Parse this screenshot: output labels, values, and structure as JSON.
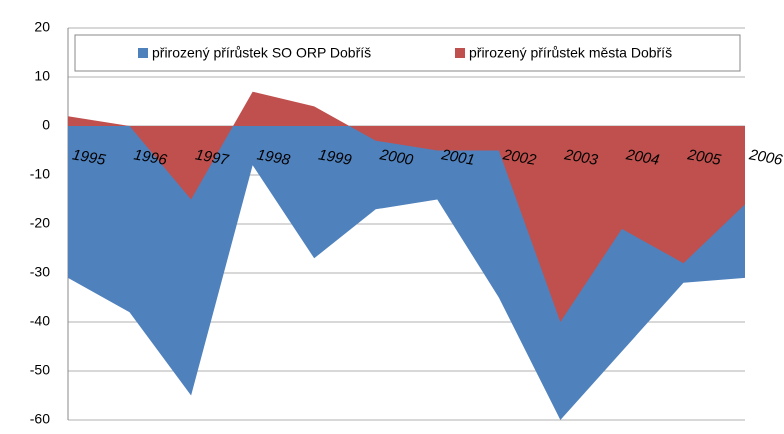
{
  "chart_data": {
    "type": "area",
    "categories": [
      "1995",
      "1996",
      "1997",
      "1998",
      "1999",
      "2000",
      "2001",
      "2002",
      "2003",
      "2004",
      "2005",
      "2006"
    ],
    "series": [
      {
        "name": "přirozený přírůstek SO ORP Dobříš",
        "color": "#4f81bd",
        "values": [
          -31,
          -38,
          -55,
          -8,
          -27,
          -17,
          -15,
          -35,
          -60,
          -46,
          -32,
          -31
        ]
      },
      {
        "name": "přirozený přírůstek města Dobříš",
        "color": "#c0504d",
        "values": [
          2,
          0,
          -15,
          7,
          4,
          -3,
          -5,
          -5,
          -40,
          -21,
          -28,
          -16
        ]
      }
    ],
    "ylim": [
      -60,
      20
    ],
    "yticks": [
      -60,
      -50,
      -40,
      -30,
      -20,
      -10,
      0,
      10,
      20
    ],
    "grid": true,
    "legend": "top"
  }
}
